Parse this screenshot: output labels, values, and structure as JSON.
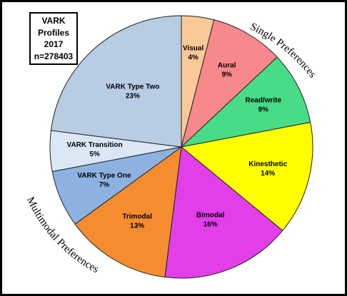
{
  "chart_data": {
    "type": "pie",
    "title_lines": [
      "VARK",
      "Profiles",
      "2017",
      "n=278403"
    ],
    "slices": [
      {
        "label": "Visual",
        "value_label": "4%",
        "value": 4,
        "color": "#FAC998"
      },
      {
        "label": "Aural",
        "value_label": "9%",
        "value": 9,
        "color": "#F7888C"
      },
      {
        "label": "Read/write",
        "value_label": "9%",
        "value": 9,
        "color": "#47DC85"
      },
      {
        "label": "Kinesthetic",
        "value_label": "14%",
        "value": 14,
        "color": "#FFFF00"
      },
      {
        "label": "Bimodal",
        "value_label": "16%",
        "value": 16,
        "color": "#E23EEA"
      },
      {
        "label": "Trimodal",
        "value_label": "13%",
        "value": 13,
        "color": "#F58D30"
      },
      {
        "label": "VARK Type One",
        "value_label": "7%",
        "value": 7,
        "color": "#8DB2E2"
      },
      {
        "label": "VARK Transition",
        "value_label": "5%",
        "value": 5,
        "color": "#DCE7F5"
      },
      {
        "label": "VARK Type Two",
        "value_label": "23%",
        "value": 23,
        "color": "#B8CCE4"
      }
    ],
    "group_annotations": [
      "Single Preferences",
      "Multimodal Preferences"
    ]
  }
}
